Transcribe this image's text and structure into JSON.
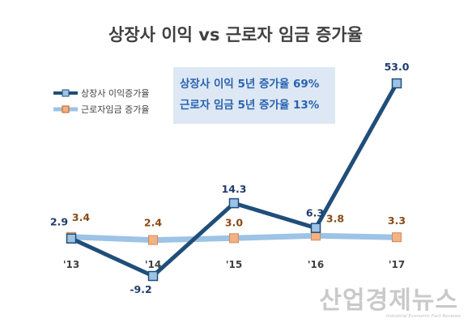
{
  "chart_data": {
    "type": "line",
    "title": "상장사 이익 vs 근로자 임금 증가율",
    "categories": [
      "'13",
      "'14",
      "'15",
      "'16",
      "'17"
    ],
    "series": [
      {
        "name": "상장사 이익증가율",
        "values": [
          2.9,
          -9.2,
          14.3,
          6.3,
          53.0
        ],
        "labels": [
          "2.9",
          "-9.2",
          "14.3",
          "6.3",
          "53.0"
        ],
        "color": "#1f4e79"
      },
      {
        "name": "근로자임금 증가율",
        "values": [
          3.4,
          2.4,
          3.0,
          3.8,
          3.3
        ],
        "labels": [
          "3.4",
          "2.4",
          "3.0",
          "3.8",
          "3.3"
        ],
        "color": "#9dc3e6",
        "marker_color": "#f4b183"
      }
    ],
    "ylim": [
      -12,
      55
    ],
    "grid": false,
    "legend": "top-left",
    "annotations": [
      "상장사 이익 5년 증가율 69%",
      "근로자 임금 5년 증가율 13%"
    ]
  },
  "watermark": {
    "text": "산업경제뉴스",
    "subtext": "Industrial Economic Fact Reviews"
  }
}
